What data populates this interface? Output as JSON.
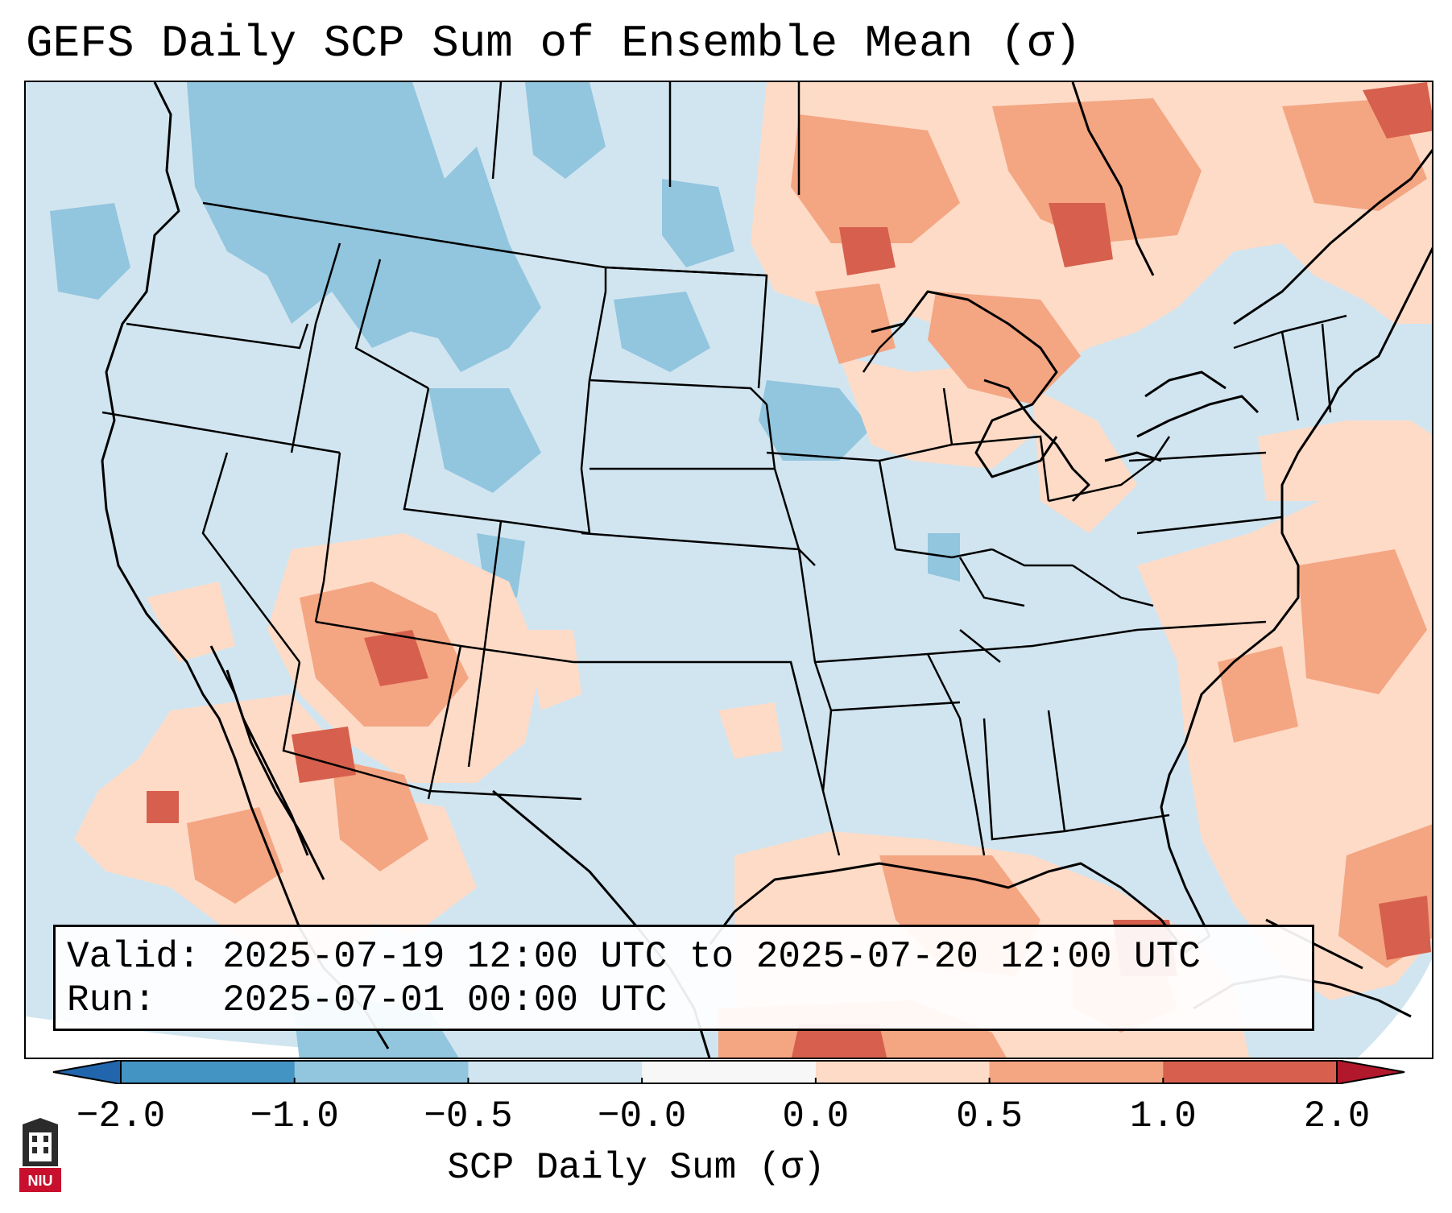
{
  "title": "GEFS Daily SCP Sum of Ensemble Mean (σ)",
  "valid_box": {
    "valid_label": "Valid:",
    "valid_value": "2025-07-19 12:00 UTC to 2025-07-20 12:00 UTC",
    "run_label": "Run:",
    "run_value": "2025-07-01 00:00 UTC"
  },
  "colorbar": {
    "label": "SCP Daily Sum (σ)",
    "ticks": [
      "−2.0",
      "−1.0",
      "−0.5",
      "−0.0",
      "0.0",
      "0.5",
      "1.0",
      "2.0"
    ],
    "colors": {
      "below": "#2166ac",
      "bins": [
        "#4393c3",
        "#92c5de",
        "#d1e5f0",
        "#f7f7f7",
        "#fddbc7",
        "#f4a582",
        "#d6604d"
      ],
      "above": "#b2182b"
    }
  },
  "logo": {
    "icon": "niu-logo-icon",
    "text": "NIU"
  }
}
